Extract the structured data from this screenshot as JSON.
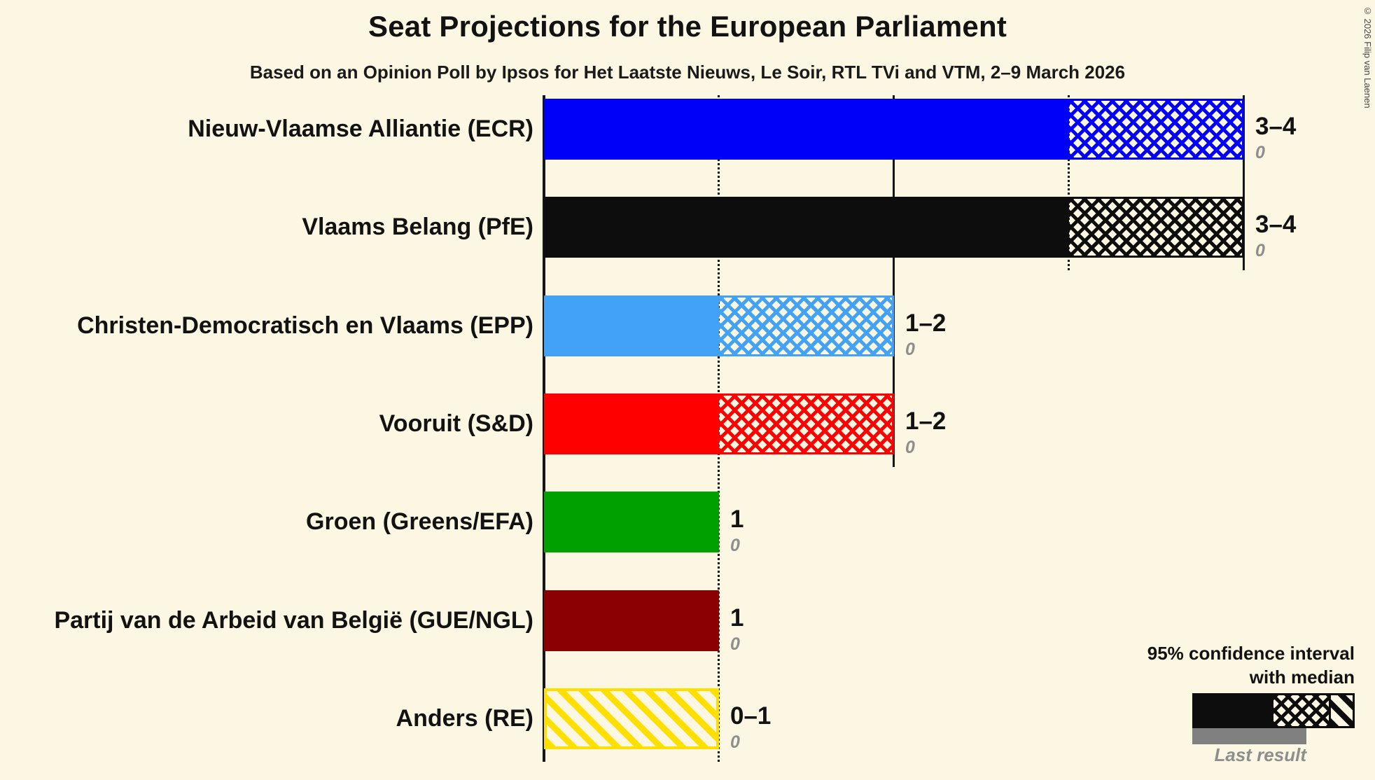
{
  "title": "Seat Projections for the European Parliament",
  "subtitle": "Based on an Opinion Poll by Ipsos for Het Laatste Nieuws, Le Soir, RTL TVi and VTM, 2–9 March 2026",
  "copyright": "© 2026 Filip van Laenen",
  "legend": {
    "ci_line1": "95% confidence interval",
    "ci_line2": "with median",
    "last_result": "Last result"
  },
  "chart_data": {
    "type": "bar",
    "orientation": "horizontal",
    "unit": "seats",
    "x_min": 0,
    "x_max": 4,
    "x_ticks": [
      0,
      1,
      2,
      3,
      4
    ],
    "grid": "vertical ticks, solid on even seats, dotted on odd seats",
    "legend_position": "bottom-right",
    "series": [
      {
        "party": "Nieuw-Vlaamse Alliantie (ECR)",
        "color": "#0000FA",
        "ci_low": 3,
        "median": 4,
        "ci_high": 4,
        "label": "3–4",
        "last_result": "0"
      },
      {
        "party": "Vlaams Belang (PfE)",
        "color": "#0D0D0D",
        "ci_low": 3,
        "median": 4,
        "ci_high": 4,
        "label": "3–4",
        "last_result": "0"
      },
      {
        "party": "Christen-Democratisch en Vlaams (EPP)",
        "color": "#42A2F5",
        "ci_low": 1,
        "median": 2,
        "ci_high": 2,
        "label": "1–2",
        "last_result": "0"
      },
      {
        "party": "Vooruit (S&D)",
        "color": "#FF0000",
        "ci_low": 1,
        "median": 2,
        "ci_high": 2,
        "label": "1–2",
        "last_result": "0"
      },
      {
        "party": "Groen (Greens/EFA)",
        "color": "#00A000",
        "ci_low": 1,
        "median": 1,
        "ci_high": 1,
        "label": "1",
        "last_result": "0"
      },
      {
        "party": "Partij van de Arbeid van België (GUE/NGL)",
        "color": "#8B0000",
        "ci_low": 1,
        "median": 1,
        "ci_high": 1,
        "label": "1",
        "last_result": "0"
      },
      {
        "party": "Anders (RE)",
        "color": "#FFDF00",
        "ci_low": 0,
        "median": 0,
        "ci_high": 1,
        "label": "0–1",
        "last_result": "0"
      }
    ]
  }
}
